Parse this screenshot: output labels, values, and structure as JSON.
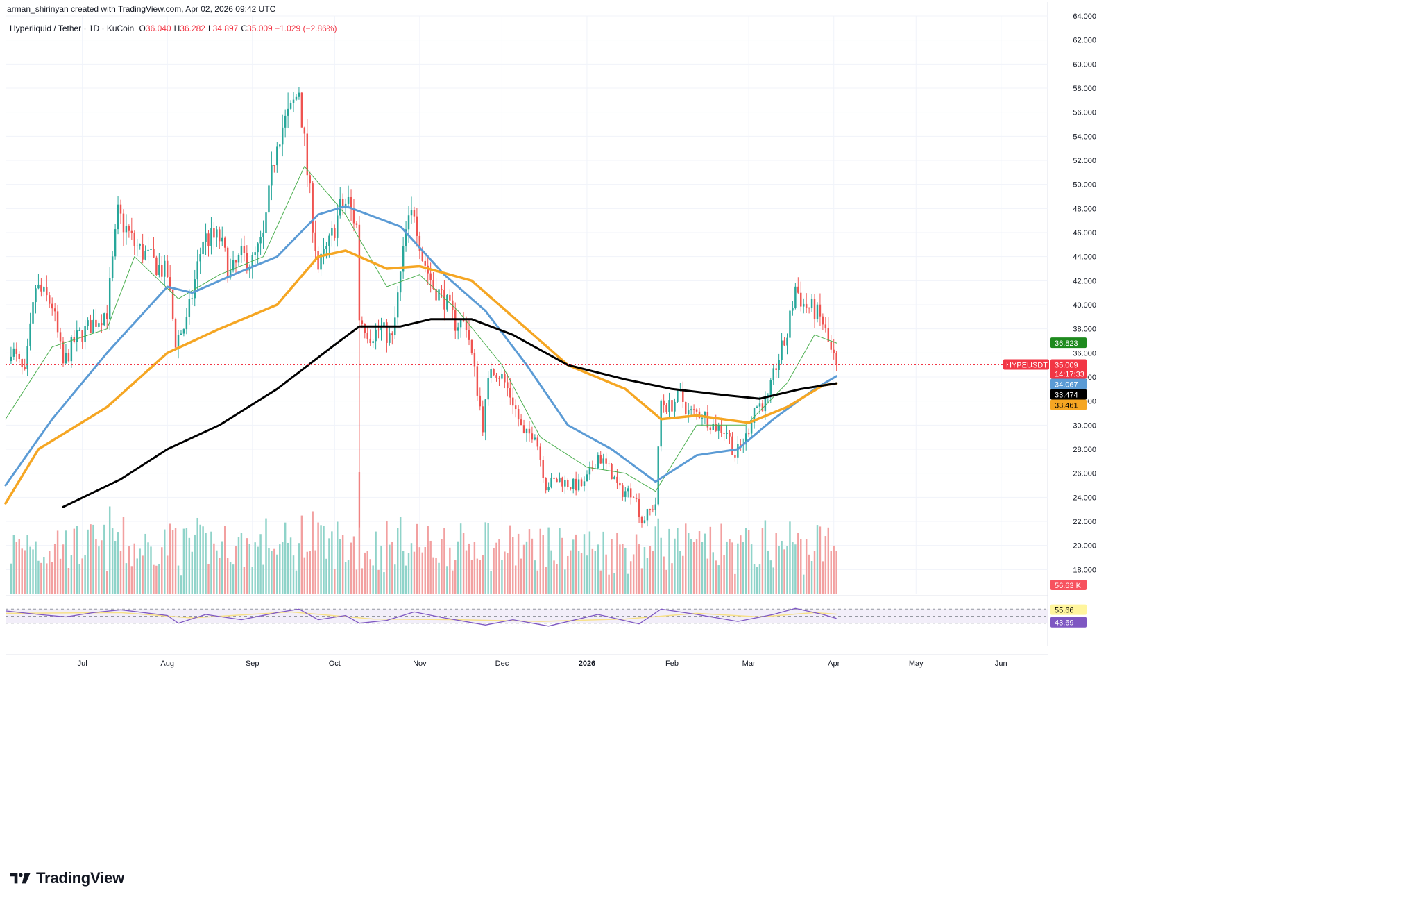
{
  "header": {
    "credit": "arman_shirinyan created with TradingView.com, Apr 02, 2026 09:42 UTC",
    "symbol": "Hyperliquid / Tether · 1D · KuCoin",
    "ohlc": [
      {
        "label": "O",
        "value": "36.040"
      },
      {
        "label": "H",
        "value": "36.282"
      },
      {
        "label": "L",
        "value": "34.897"
      },
      {
        "label": "C",
        "value": "35.009"
      }
    ],
    "change": "−1.029 (−2.86%)"
  },
  "brand": {
    "text": "TradingView",
    "icon": "tradingview-logo-icon"
  },
  "colors": {
    "up": "#26a69a",
    "down": "#ef5350",
    "vol_up": "#8fd3c9",
    "vol_down": "#f2a0a0",
    "ma_fast": "#4caf50",
    "ma_mid": "#5b9bd5",
    "ma_slow": "#f5a623",
    "ma_long": "#000000",
    "rsi_line": "#7e57c2",
    "rsi_ma": "#f7e18a",
    "rsi_band": "#ede7f6"
  },
  "chart_data": {
    "type": "candlestick",
    "title": "Hyperliquid / Tether · 1D · KuCoin",
    "price_axis": {
      "ylim": [
        16,
        64
      ],
      "ticks": [
        "64.000",
        "62.000",
        "60.000",
        "58.000",
        "56.000",
        "54.000",
        "52.000",
        "50.000",
        "48.000",
        "46.000",
        "44.000",
        "42.000",
        "40.000",
        "38.000",
        "36.000",
        "34.000",
        "32.000",
        "30.000",
        "28.000",
        "26.000",
        "24.000",
        "22.000",
        "20.000",
        "18.000"
      ],
      "position": "right"
    },
    "x_axis": {
      "start": "2025-06-03",
      "end": "2026-06-18",
      "month_labels": [
        {
          "label": "Jul",
          "date": "2025-07-01"
        },
        {
          "label": "Aug",
          "date": "2025-08-01"
        },
        {
          "label": "Sep",
          "date": "2025-09-01"
        },
        {
          "label": "Oct",
          "date": "2025-10-01"
        },
        {
          "label": "Nov",
          "date": "2025-11-01"
        },
        {
          "label": "Dec",
          "date": "2025-12-01"
        },
        {
          "label": "2026",
          "date": "2026-01-01"
        },
        {
          "label": "Feb",
          "date": "2026-02-01"
        },
        {
          "label": "Mar",
          "date": "2026-03-01"
        },
        {
          "label": "Apr",
          "date": "2026-04-01"
        },
        {
          "label": "May",
          "date": "2026-05-01"
        },
        {
          "label": "Jun",
          "date": "2026-06-01"
        }
      ]
    },
    "candles_start": "2025-06-05",
    "close_path": [
      [
        "2025-06-05",
        36.5
      ],
      [
        "2025-06-10",
        34.0
      ],
      [
        "2025-06-14",
        41.5
      ],
      [
        "2025-06-20",
        40.0
      ],
      [
        "2025-06-24",
        35.0
      ],
      [
        "2025-06-28",
        37.0
      ],
      [
        "2025-07-05",
        38.5
      ],
      [
        "2025-07-10",
        39.5
      ],
      [
        "2025-07-14",
        47.5
      ],
      [
        "2025-07-20",
        45.0
      ],
      [
        "2025-07-27",
        43.5
      ],
      [
        "2025-08-01",
        42.5
      ],
      [
        "2025-08-04",
        37.0
      ],
      [
        "2025-08-08",
        38.5
      ],
      [
        "2025-08-14",
        45.5
      ],
      [
        "2025-08-20",
        45.5
      ],
      [
        "2025-08-24",
        42.5
      ],
      [
        "2025-08-28",
        44.0
      ],
      [
        "2025-09-01",
        43.5
      ],
      [
        "2025-09-05",
        45.5
      ],
      [
        "2025-09-10",
        54.0
      ],
      [
        "2025-09-15",
        56.0
      ],
      [
        "2025-09-18",
        58.0
      ],
      [
        "2025-09-21",
        51.0
      ],
      [
        "2025-09-25",
        43.0
      ],
      [
        "2025-09-29",
        45.0
      ],
      [
        "2025-10-03",
        48.0
      ],
      [
        "2025-10-06",
        48.5
      ],
      [
        "2025-10-09",
        46.5
      ],
      [
        "2025-10-10",
        39.0
      ],
      [
        "2025-10-14",
        37.5
      ],
      [
        "2025-10-18",
        38.0
      ],
      [
        "2025-10-22",
        37.0
      ],
      [
        "2025-10-27",
        46.0
      ],
      [
        "2025-10-30",
        48.0
      ],
      [
        "2025-11-02",
        44.0
      ],
      [
        "2025-11-06",
        41.5
      ],
      [
        "2025-11-10",
        40.5
      ],
      [
        "2025-11-14",
        38.5
      ],
      [
        "2025-11-18",
        38.5
      ],
      [
        "2025-11-22",
        33.0
      ],
      [
        "2025-11-24",
        30.0
      ],
      [
        "2025-11-27",
        35.0
      ],
      [
        "2025-12-01",
        34.0
      ],
      [
        "2025-12-05",
        32.0
      ],
      [
        "2025-12-09",
        29.0
      ],
      [
        "2025-12-13",
        29.5
      ],
      [
        "2025-12-17",
        25.0
      ],
      [
        "2025-12-22",
        25.5
      ],
      [
        "2025-12-26",
        25.0
      ],
      [
        "2025-12-31",
        25.0
      ],
      [
        "2026-01-05",
        27.5
      ],
      [
        "2026-01-10",
        26.0
      ],
      [
        "2026-01-13",
        24.5
      ],
      [
        "2026-01-18",
        24.5
      ],
      [
        "2026-01-21",
        22.0
      ],
      [
        "2026-01-26",
        23.5
      ],
      [
        "2026-01-28",
        32.0
      ],
      [
        "2026-01-31",
        31.5
      ],
      [
        "2026-02-04",
        32.5
      ],
      [
        "2026-02-07",
        31.0
      ],
      [
        "2026-02-12",
        31.0
      ],
      [
        "2026-02-16",
        30.0
      ],
      [
        "2026-02-21",
        29.5
      ],
      [
        "2026-02-24",
        27.5
      ],
      [
        "2026-02-28",
        29.0
      ],
      [
        "2026-03-03",
        31.5
      ],
      [
        "2026-03-08",
        32.0
      ],
      [
        "2026-03-11",
        35.0
      ],
      [
        "2026-03-15",
        37.5
      ],
      [
        "2026-03-18",
        41.5
      ],
      [
        "2026-03-21",
        40.0
      ],
      [
        "2026-03-25",
        39.5
      ],
      [
        "2026-03-28",
        38.5
      ],
      [
        "2026-03-31",
        36.0
      ],
      [
        "2026-04-02",
        35.009
      ]
    ],
    "moving_averages": [
      {
        "color_key": "ma_fast",
        "points": [
          [
            "2025-06-03",
            30.5
          ],
          [
            "2025-06-20",
            36.5
          ],
          [
            "2025-07-10",
            38.0
          ],
          [
            "2025-07-20",
            44.0
          ],
          [
            "2025-08-05",
            40.5
          ],
          [
            "2025-08-20",
            42.5
          ],
          [
            "2025-09-05",
            44.0
          ],
          [
            "2025-09-20",
            51.5
          ],
          [
            "2025-10-05",
            47.5
          ],
          [
            "2025-10-20",
            41.5
          ],
          [
            "2025-11-01",
            42.5
          ],
          [
            "2025-11-15",
            39.5
          ],
          [
            "2025-12-01",
            35.0
          ],
          [
            "2025-12-15",
            29.0
          ],
          [
            "2026-01-01",
            26.5
          ],
          [
            "2026-01-15",
            26.0
          ],
          [
            "2026-01-26",
            24.5
          ],
          [
            "2026-02-10",
            30.0
          ],
          [
            "2026-02-28",
            30.0
          ],
          [
            "2026-03-15",
            33.5
          ],
          [
            "2026-03-25",
            37.5
          ],
          [
            "2026-04-02",
            36.823
          ]
        ]
      },
      {
        "color_key": "ma_mid",
        "points": [
          [
            "2025-06-03",
            25.0
          ],
          [
            "2025-06-20",
            30.5
          ],
          [
            "2025-07-10",
            36.0
          ],
          [
            "2025-08-01",
            41.5
          ],
          [
            "2025-08-10",
            41.0
          ],
          [
            "2025-08-25",
            42.5
          ],
          [
            "2025-09-10",
            44.0
          ],
          [
            "2025-09-25",
            47.5
          ],
          [
            "2025-10-05",
            48.2
          ],
          [
            "2025-10-25",
            46.5
          ],
          [
            "2025-11-10",
            42.5
          ],
          [
            "2025-11-25",
            39.5
          ],
          [
            "2025-12-10",
            35.0
          ],
          [
            "2025-12-25",
            30.0
          ],
          [
            "2026-01-10",
            28.0
          ],
          [
            "2026-01-26",
            25.3
          ],
          [
            "2026-02-10",
            27.5
          ],
          [
            "2026-02-25",
            28.0
          ],
          [
            "2026-03-10",
            30.5
          ],
          [
            "2026-03-25",
            33.0
          ],
          [
            "2026-04-02",
            34.067
          ]
        ]
      },
      {
        "color_key": "ma_slow",
        "points": [
          [
            "2025-06-03",
            23.5
          ],
          [
            "2025-06-15",
            28.0
          ],
          [
            "2025-07-10",
            31.5
          ],
          [
            "2025-08-01",
            36.0
          ],
          [
            "2025-08-20",
            38.0
          ],
          [
            "2025-09-10",
            40.0
          ],
          [
            "2025-09-25",
            44.0
          ],
          [
            "2025-10-05",
            44.5
          ],
          [
            "2025-10-20",
            43.0
          ],
          [
            "2025-11-01",
            43.2
          ],
          [
            "2025-11-20",
            42.0
          ],
          [
            "2025-12-10",
            38.0
          ],
          [
            "2025-12-25",
            35.0
          ],
          [
            "2026-01-15",
            33.0
          ],
          [
            "2026-01-28",
            30.5
          ],
          [
            "2026-02-10",
            30.8
          ],
          [
            "2026-03-01",
            30.2
          ],
          [
            "2026-03-15",
            31.5
          ],
          [
            "2026-03-28",
            33.3
          ],
          [
            "2026-04-02",
            33.461
          ]
        ]
      },
      {
        "color_key": "ma_long",
        "points": [
          [
            "2025-06-24",
            23.2
          ],
          [
            "2025-07-15",
            25.5
          ],
          [
            "2025-08-01",
            28.0
          ],
          [
            "2025-08-20",
            30.0
          ],
          [
            "2025-09-10",
            33.0
          ],
          [
            "2025-09-30",
            36.5
          ],
          [
            "2025-10-10",
            38.2
          ],
          [
            "2025-10-25",
            38.2
          ],
          [
            "2025-11-05",
            38.8
          ],
          [
            "2025-11-20",
            38.8
          ],
          [
            "2025-12-05",
            37.5
          ],
          [
            "2025-12-25",
            35.0
          ],
          [
            "2026-01-15",
            33.8
          ],
          [
            "2026-02-01",
            33.0
          ],
          [
            "2026-02-20",
            32.5
          ],
          [
            "2026-03-05",
            32.2
          ],
          [
            "2026-03-20",
            33.0
          ],
          [
            "2026-04-02",
            33.474
          ]
        ]
      }
    ],
    "rsi": {
      "levels": [
        70,
        50,
        30
      ],
      "line_points": [
        [
          "2025-06-03",
          65
        ],
        [
          "2025-06-15",
          55
        ],
        [
          "2025-06-25",
          48
        ],
        [
          "2025-07-05",
          60
        ],
        [
          "2025-07-15",
          68
        ],
        [
          "2025-08-01",
          52
        ],
        [
          "2025-08-05",
          30
        ],
        [
          "2025-08-15",
          55
        ],
        [
          "2025-08-28",
          40
        ],
        [
          "2025-09-10",
          60
        ],
        [
          "2025-09-18",
          70
        ],
        [
          "2025-09-25",
          40
        ],
        [
          "2025-10-05",
          52
        ],
        [
          "2025-10-10",
          30
        ],
        [
          "2025-10-20",
          38
        ],
        [
          "2025-10-30",
          62
        ],
        [
          "2025-11-10",
          45
        ],
        [
          "2025-11-25",
          25
        ],
        [
          "2025-12-05",
          40
        ],
        [
          "2025-12-18",
          22
        ],
        [
          "2026-01-05",
          55
        ],
        [
          "2026-01-20",
          28
        ],
        [
          "2026-01-28",
          70
        ],
        [
          "2026-02-10",
          55
        ],
        [
          "2026-02-25",
          35
        ],
        [
          "2026-03-10",
          55
        ],
        [
          "2026-03-18",
          72
        ],
        [
          "2026-03-28",
          55
        ],
        [
          "2026-04-02",
          43.69
        ]
      ],
      "ma_points": [
        [
          "2025-06-03",
          58
        ],
        [
          "2025-07-15",
          60
        ],
        [
          "2025-08-10",
          45
        ],
        [
          "2025-09-15",
          62
        ],
        [
          "2025-10-15",
          42
        ],
        [
          "2025-11-15",
          40
        ],
        [
          "2025-12-15",
          35
        ],
        [
          "2026-01-15",
          42
        ],
        [
          "2026-02-10",
          58
        ],
        [
          "2026-03-05",
          48
        ],
        [
          "2026-03-25",
          60
        ],
        [
          "2026-04-02",
          55.66
        ]
      ]
    },
    "price_tags": [
      {
        "text": "36.823",
        "value": 36.823,
        "color": "#1e8a1e",
        "text_color": "#ffffff"
      },
      {
        "text": "35.009",
        "value": 35.009,
        "color": "#f23645",
        "text_color": "#ffffff",
        "symbol": "HYPEUSDT",
        "countdown": "14:17:33"
      },
      {
        "text": "34.067",
        "value": 34.067,
        "color": "#5b9bd5",
        "text_color": "#ffffff"
      },
      {
        "text": "33.474",
        "value": 33.474,
        "color": "#000000",
        "text_color": "#ffffff"
      },
      {
        "text": "33.461",
        "value": 33.461,
        "color": "#f5a623",
        "text_color": "#000000"
      }
    ],
    "volume_tag": {
      "text": "56.63 K",
      "color": "#f7525f"
    },
    "rsi_tags": [
      {
        "text": "55.66",
        "value": 55.66,
        "color": "#fff59d",
        "text_color": "#000000"
      },
      {
        "text": "43.69",
        "value": 43.69,
        "color": "#7e57c2",
        "text_color": "#ffffff"
      }
    ]
  }
}
